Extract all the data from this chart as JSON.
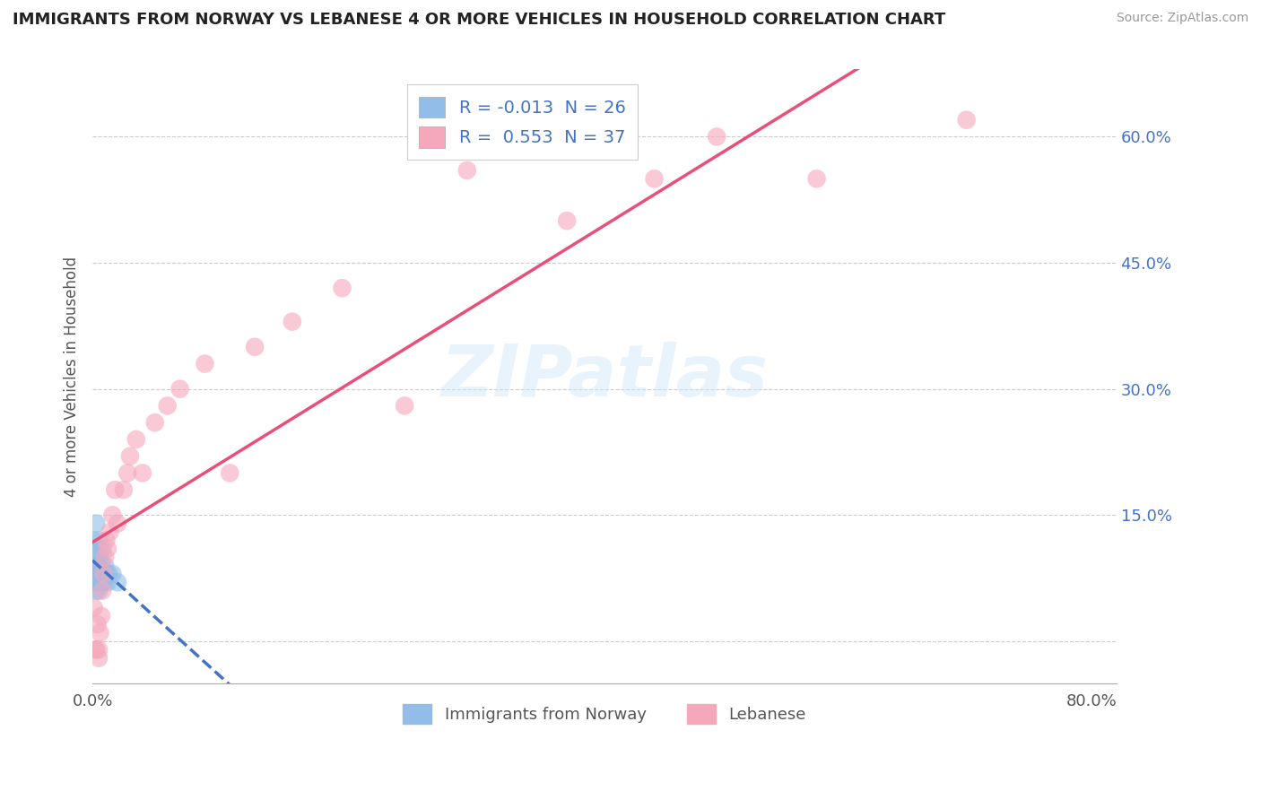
{
  "title": "IMMIGRANTS FROM NORWAY VS LEBANESE 4 OR MORE VEHICLES IN HOUSEHOLD CORRELATION CHART",
  "source": "Source: ZipAtlas.com",
  "ylabel": "4 or more Vehicles in Household",
  "xlim": [
    0.0,
    0.82
  ],
  "ylim": [
    -0.05,
    0.68
  ],
  "norway_color": "#92bde8",
  "lebanese_color": "#f5a8bc",
  "norway_line_color": "#4472c4",
  "lebanese_line_color": "#e8507a",
  "legend_r1_label": "R = -0.013  N = 26",
  "legend_r2_label": "R =  0.553  N = 37",
  "legend1_label": "Immigrants from Norway",
  "legend2_label": "Lebanese",
  "watermark_text": "ZIPatlas",
  "background_color": "#ffffff",
  "ytick_positions": [
    0.0,
    0.15,
    0.3,
    0.45,
    0.6
  ],
  "ytick_labels": [
    "",
    "15.0%",
    "30.0%",
    "45.0%",
    "60.0%"
  ],
  "xtick_positions": [
    0.0,
    0.1,
    0.2,
    0.3,
    0.4,
    0.5,
    0.6,
    0.7,
    0.8
  ],
  "xtick_labels": [
    "0.0%",
    "",
    "",
    "",
    "",
    "",
    "",
    "",
    "80.0%"
  ],
  "norway_x": [
    0.001,
    0.001,
    0.002,
    0.002,
    0.003,
    0.003,
    0.003,
    0.004,
    0.004,
    0.004,
    0.005,
    0.005,
    0.005,
    0.006,
    0.006,
    0.007,
    0.007,
    0.008,
    0.008,
    0.009,
    0.01,
    0.011,
    0.012,
    0.013,
    0.016,
    0.02
  ],
  "norway_y": [
    0.08,
    0.12,
    0.07,
    0.11,
    0.09,
    0.06,
    0.14,
    0.1,
    0.08,
    0.07,
    0.09,
    0.12,
    0.06,
    0.1,
    0.08,
    0.07,
    0.09,
    0.08,
    0.11,
    0.07,
    0.09,
    0.08,
    0.07,
    0.08,
    0.08,
    0.07
  ],
  "lebanese_x": [
    0.001,
    0.002,
    0.003,
    0.004,
    0.005,
    0.005,
    0.006,
    0.007,
    0.008,
    0.009,
    0.01,
    0.011,
    0.012,
    0.014,
    0.016,
    0.018,
    0.02,
    0.025,
    0.028,
    0.03,
    0.035,
    0.04,
    0.05,
    0.06,
    0.07,
    0.09,
    0.11,
    0.13,
    0.16,
    0.2,
    0.25,
    0.3,
    0.38,
    0.45,
    0.5,
    0.58,
    0.7
  ],
  "lebanese_y": [
    0.04,
    -0.01,
    -0.01,
    0.02,
    -0.02,
    -0.01,
    0.01,
    0.03,
    0.06,
    0.08,
    0.1,
    0.12,
    0.11,
    0.13,
    0.15,
    0.18,
    0.14,
    0.18,
    0.2,
    0.22,
    0.24,
    0.2,
    0.26,
    0.28,
    0.3,
    0.33,
    0.2,
    0.35,
    0.38,
    0.42,
    0.28,
    0.56,
    0.5,
    0.55,
    0.6,
    0.55,
    0.62
  ],
  "norway_line_start_x": 0.0,
  "norway_line_end_x": 0.82,
  "lebanese_line_start_x": 0.0,
  "lebanese_line_end_x": 0.82
}
